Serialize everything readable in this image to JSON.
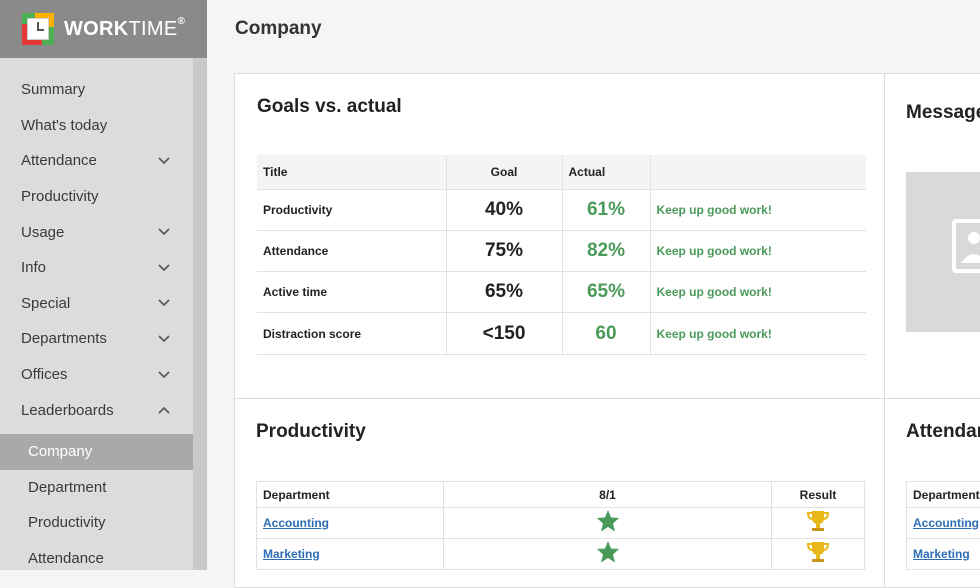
{
  "brand": {
    "name_bold": "WORK",
    "name_light": "TIME",
    "mark": "®"
  },
  "page": {
    "title": "Company"
  },
  "sidebar": {
    "items": [
      {
        "label": "Summary",
        "chevron": ""
      },
      {
        "label": "What's today",
        "chevron": ""
      },
      {
        "label": "Attendance",
        "chevron": "down"
      },
      {
        "label": "Productivity",
        "chevron": ""
      },
      {
        "label": "Usage",
        "chevron": "down"
      },
      {
        "label": "Info",
        "chevron": "down"
      },
      {
        "label": "Special",
        "chevron": "down"
      },
      {
        "label": "Departments",
        "chevron": "down"
      },
      {
        "label": "Offices",
        "chevron": "down"
      },
      {
        "label": "Leaderboards",
        "chevron": "up"
      }
    ],
    "sub_items": [
      {
        "label": "Company",
        "active": true
      },
      {
        "label": "Department",
        "active": false
      },
      {
        "label": "Productivity",
        "active": false
      },
      {
        "label": "Attendance",
        "active": false
      }
    ]
  },
  "goals": {
    "title": "Goals vs. actual",
    "headers": {
      "title": "Title",
      "goal": "Goal",
      "actual": "Actual"
    },
    "rows": [
      {
        "title": "Productivity",
        "goal": "40%",
        "actual": "61%",
        "note": "Keep up good work!"
      },
      {
        "title": "Attendance",
        "goal": "75%",
        "actual": "82%",
        "note": "Keep up good work!"
      },
      {
        "title": "Active time",
        "goal": "65%",
        "actual": "65%",
        "note": "Keep up good work!"
      },
      {
        "title": "Distraction score",
        "goal": "<150",
        "actual": "60",
        "note": "Keep up good work!"
      }
    ]
  },
  "messages": {
    "title": "Messages"
  },
  "productivity": {
    "title": "Productivity",
    "headers": {
      "department": "Department",
      "date": "8/1",
      "result": "Result"
    },
    "rows": [
      {
        "department": "Accounting",
        "mark": "star-icon",
        "result": "trophy-icon"
      },
      {
        "department": "Marketing",
        "mark": "star-icon",
        "result": "trophy-icon"
      }
    ]
  },
  "attendance": {
    "title": "Attendance",
    "headers": {
      "department": "Department"
    },
    "rows": [
      {
        "department": "Accounting"
      },
      {
        "department": "Marketing"
      }
    ]
  },
  "colors": {
    "positive": "#4a9a5a",
    "link": "#2c6db5",
    "star": "#4a9a5a",
    "trophy": "#e8b818",
    "active_nav": "#a9a9a9"
  }
}
